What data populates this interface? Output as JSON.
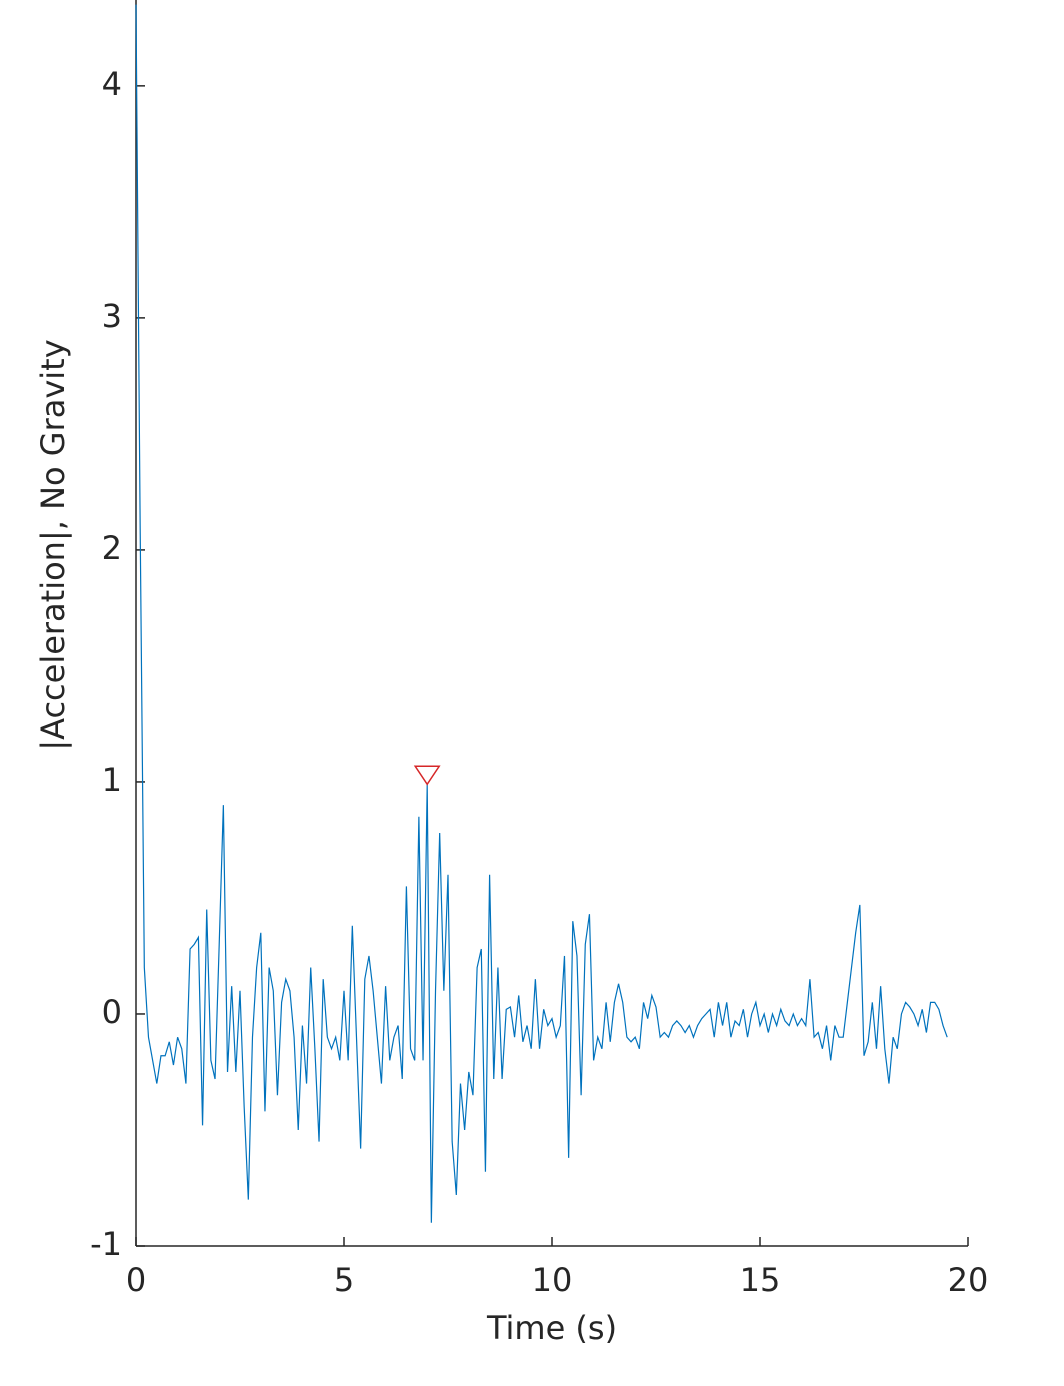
{
  "chart_data": {
    "type": "line",
    "x_label": "Time (s)",
    "y_label": "|Acceleration|, No Gravity",
    "xlim": [
      0,
      20
    ],
    "ylim": [
      -1,
      4.37
    ],
    "xticks": [
      0,
      5,
      10,
      15,
      20
    ],
    "yticks": [
      -1,
      0,
      1,
      2,
      3,
      4
    ],
    "series": [
      {
        "color": "#0072bd",
        "x": [
          0,
          0.1,
          0.2,
          0.3,
          0.4,
          0.5,
          0.6,
          0.7,
          0.8,
          0.9,
          1,
          1.1,
          1.2,
          1.3,
          1.4,
          1.5,
          1.6,
          1.7,
          1.8,
          1.9,
          2,
          2.1,
          2.2,
          2.3,
          2.4,
          2.5,
          2.6,
          2.7,
          2.8,
          2.9,
          3,
          3.1,
          3.2,
          3.3,
          3.4,
          3.5,
          3.6,
          3.7,
          3.8,
          3.9,
          4,
          4.1,
          4.2,
          4.3,
          4.4,
          4.5,
          4.6,
          4.7,
          4.8,
          4.9,
          5,
          5.1,
          5.2,
          5.3,
          5.4,
          5.5,
          5.6,
          5.7,
          5.8,
          5.9,
          6,
          6.1,
          6.2,
          6.3,
          6.4,
          6.5,
          6.6,
          6.7,
          6.8,
          6.9,
          7,
          7.1,
          7.2,
          7.3,
          7.4,
          7.5,
          7.6,
          7.7,
          7.8,
          7.9,
          8,
          8.1,
          8.2,
          8.3,
          8.4,
          8.5,
          8.6,
          8.7,
          8.8,
          8.9,
          9,
          9.1,
          9.2,
          9.3,
          9.4,
          9.5,
          9.6,
          9.7,
          9.8,
          9.9,
          10,
          10.1,
          10.2,
          10.3,
          10.4,
          10.5,
          10.6,
          10.7,
          10.8,
          10.9,
          11,
          11.1,
          11.2,
          11.3,
          11.4,
          11.5,
          11.6,
          11.7,
          11.8,
          11.9,
          12,
          12.1,
          12.2,
          12.3,
          12.4,
          12.5,
          12.6,
          12.7,
          12.8,
          12.9,
          13,
          13.1,
          13.2,
          13.3,
          13.4,
          13.5,
          13.6,
          13.7,
          13.8,
          13.9,
          14,
          14.1,
          14.2,
          14.3,
          14.4,
          14.5,
          14.6,
          14.7,
          14.8,
          14.9,
          15,
          15.1,
          15.2,
          15.3,
          15.4,
          15.5,
          15.6,
          15.7,
          15.8,
          15.9,
          16,
          16.1,
          16.2,
          16.3,
          16.4,
          16.5,
          16.6,
          16.7,
          16.8,
          16.9,
          17,
          17.1,
          17.2,
          17.3,
          17.4,
          17.5,
          17.6,
          17.7,
          17.8,
          17.9,
          18,
          18.1,
          18.2,
          18.3,
          18.4,
          18.5,
          18.6,
          18.7,
          18.8,
          18.9,
          19,
          19.1,
          19.2,
          19.3,
          19.4,
          19.5
        ],
        "values": [
          4.35,
          2.1,
          0.2,
          -0.1,
          -0.2,
          -0.3,
          -0.18,
          -0.18,
          -0.12,
          -0.22,
          -0.1,
          -0.15,
          -0.3,
          0.28,
          0.3,
          0.33,
          -0.48,
          0.45,
          -0.2,
          -0.28,
          0.3,
          0.9,
          -0.25,
          0.12,
          -0.25,
          0.1,
          -0.4,
          -0.8,
          -0.1,
          0.2,
          0.35,
          -0.42,
          0.2,
          0.1,
          -0.35,
          0.05,
          0.15,
          0.1,
          -0.1,
          -0.5,
          -0.05,
          -0.3,
          0.2,
          -0.15,
          -0.55,
          0.15,
          -0.1,
          -0.15,
          -0.1,
          -0.2,
          0.1,
          -0.2,
          0.38,
          -0.1,
          -0.58,
          0.15,
          0.25,
          0.1,
          -0.1,
          -0.3,
          0.12,
          -0.2,
          -0.1,
          -0.05,
          -0.28,
          0.55,
          -0.15,
          -0.2,
          0.85,
          -0.2,
          0.99,
          -0.9,
          0.1,
          0.78,
          0.1,
          0.6,
          -0.55,
          -0.78,
          -0.3,
          -0.5,
          -0.25,
          -0.35,
          0.2,
          0.28,
          -0.68,
          0.6,
          -0.28,
          0.2,
          -0.28,
          0.02,
          0.03,
          -0.1,
          0.08,
          -0.12,
          -0.05,
          -0.15,
          0.15,
          -0.15,
          0.02,
          -0.05,
          -0.02,
          -0.1,
          -0.05,
          0.25,
          -0.62,
          0.4,
          0.25,
          -0.35,
          0.3,
          0.43,
          -0.2,
          -0.1,
          -0.15,
          0.05,
          -0.12,
          0.05,
          0.13,
          0.05,
          -0.1,
          -0.12,
          -0.1,
          -0.15,
          0.05,
          -0.02,
          0.08,
          0.03,
          -0.1,
          -0.08,
          -0.1,
          -0.05,
          -0.03,
          -0.05,
          -0.08,
          -0.05,
          -0.1,
          -0.05,
          -0.02,
          0,
          0.02,
          -0.1,
          0.05,
          -0.05,
          0.05,
          -0.1,
          -0.03,
          -0.05,
          0.02,
          -0.1,
          0,
          0.05,
          -0.05,
          0,
          -0.08,
          0,
          -0.05,
          0.02,
          -0.03,
          -0.05,
          0,
          -0.05,
          -0.02,
          -0.05,
          0.15,
          -0.1,
          -0.08,
          -0.15,
          -0.05,
          -0.2,
          -0.05,
          -0.1,
          -0.1,
          0.05,
          0.2,
          0.35,
          0.47,
          -0.18,
          -0.12,
          0.05,
          -0.15,
          0.12,
          -0.15,
          -0.3,
          -0.1,
          -0.15,
          0,
          0.05,
          0.03,
          0,
          -0.05,
          0.02,
          -0.08,
          0.05,
          0.05,
          0.02,
          -0.05,
          -0.1
        ]
      }
    ],
    "peaks": {
      "x": [
        7
      ],
      "values": [
        0.99
      ],
      "color": "#d62728"
    }
  }
}
